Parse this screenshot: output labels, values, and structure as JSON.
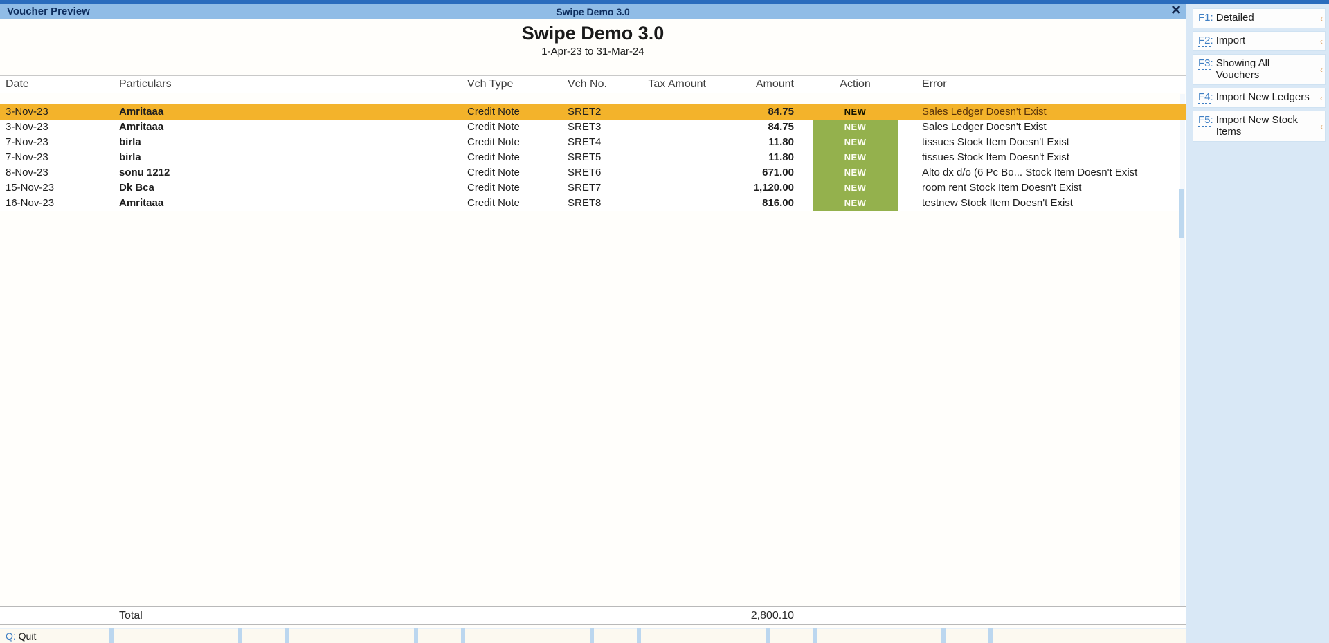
{
  "titlebar": {
    "window_title": "Voucher Preview",
    "app_title": "Swipe Demo 3.0",
    "close_glyph": "✕"
  },
  "report": {
    "title": "Swipe Demo 3.0",
    "period": "1-Apr-23 to 31-Mar-24"
  },
  "table": {
    "columns": [
      "Date",
      "Particulars",
      "Vch Type",
      "Vch No.",
      "Tax Amount",
      "Amount",
      "Action",
      "Error"
    ],
    "rows": [
      {
        "date": "3-Nov-23",
        "particulars": "Amritaaa",
        "vch_type": "Credit Note",
        "vch_no": "SRET2",
        "tax_amount": "",
        "amount": "84.75",
        "action": "NEW",
        "error": "Sales Ledger Doesn't Exist",
        "selected": true
      },
      {
        "date": "3-Nov-23",
        "particulars": "Amritaaa",
        "vch_type": "Credit Note",
        "vch_no": "SRET3",
        "tax_amount": "",
        "amount": "84.75",
        "action": "NEW",
        "error": "Sales Ledger Doesn't Exist"
      },
      {
        "date": "7-Nov-23",
        "particulars": "birla",
        "vch_type": "Credit Note",
        "vch_no": "SRET4",
        "tax_amount": "",
        "amount": "11.80",
        "action": "NEW",
        "error": "tissues Stock Item Doesn't Exist"
      },
      {
        "date": "7-Nov-23",
        "particulars": "birla",
        "vch_type": "Credit Note",
        "vch_no": "SRET5",
        "tax_amount": "",
        "amount": "11.80",
        "action": "NEW",
        "error": "tissues Stock Item Doesn't Exist"
      },
      {
        "date": "8-Nov-23",
        "particulars": "sonu 1212",
        "vch_type": "Credit Note",
        "vch_no": "SRET6",
        "tax_amount": "",
        "amount": "671.00",
        "action": "NEW",
        "error": "Alto dx d/o (6 Pc Bo... Stock Item Doesn't Exist"
      },
      {
        "date": "15-Nov-23",
        "particulars": "Dk Bca",
        "vch_type": "Credit Note",
        "vch_no": "SRET7",
        "tax_amount": "",
        "amount": "1,120.00",
        "action": "NEW",
        "error": "room rent Stock Item Doesn't Exist"
      },
      {
        "date": "16-Nov-23",
        "particulars": "Amritaaa",
        "vch_type": "Credit Note",
        "vch_no": "SRET8",
        "tax_amount": "",
        "amount": "816.00",
        "action": "NEW",
        "error": "testnew Stock Item Doesn't Exist"
      }
    ],
    "total_label": "Total",
    "total_amount": "2,800.10"
  },
  "sidebar": {
    "items": [
      {
        "key": "F1",
        "label": "Detailed"
      },
      {
        "key": "F2",
        "label": "Import"
      },
      {
        "key": "F3",
        "label": "Showing All Vouchers"
      },
      {
        "key": "F4",
        "label": "Import New Ledgers"
      },
      {
        "key": "F5",
        "label": "Import New Stock Items"
      }
    ],
    "chevron_glyph": "‹"
  },
  "bottombar": {
    "quit_key": "Q",
    "quit_label": "Quit"
  },
  "colors": {
    "top_strip": "#2a6cbd",
    "titlebar_blue": "#90bce6",
    "highlight_orange": "#f3b32b",
    "badge_green": "#94b14d",
    "sidebar_bg": "#d9e8f6",
    "fkey_blue": "#3f7fc4"
  }
}
